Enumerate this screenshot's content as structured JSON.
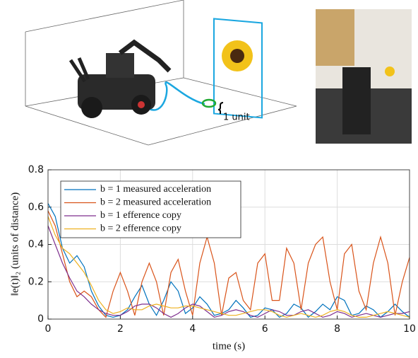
{
  "illustration": {
    "label": "1 unit"
  },
  "chart_data": {
    "type": "line",
    "xlabel": "time (s)",
    "ylabel": "‖e(t)‖₂ (units of distance)",
    "x": [
      0,
      0.2,
      0.4,
      0.6,
      0.8,
      1,
      1.2,
      1.4,
      1.6,
      1.8,
      2,
      2.2,
      2.4,
      2.6,
      2.8,
      3,
      3.2,
      3.4,
      3.6,
      3.8,
      4,
      4.2,
      4.4,
      4.6,
      4.8,
      5,
      5.2,
      5.4,
      5.6,
      5.8,
      6,
      6.2,
      6.4,
      6.6,
      6.8,
      7,
      7.2,
      7.4,
      7.6,
      7.8,
      8,
      8.2,
      8.4,
      8.6,
      8.8,
      9,
      9.2,
      9.4,
      9.6,
      9.8,
      10
    ],
    "series": [
      {
        "name": "b = 1 measured acceleration",
        "color": "#0072bd",
        "values": [
          0.62,
          0.55,
          0.38,
          0.3,
          0.34,
          0.28,
          0.15,
          0.07,
          0.02,
          0.01,
          0.02,
          0.05,
          0.12,
          0.18,
          0.08,
          0.02,
          0.1,
          0.2,
          0.15,
          0.03,
          0.06,
          0.12,
          0.08,
          0.02,
          0.03,
          0.05,
          0.1,
          0.06,
          0.01,
          0.02,
          0.06,
          0.05,
          0.01,
          0.03,
          0.08,
          0.06,
          0.01,
          0.04,
          0.08,
          0.05,
          0.12,
          0.1,
          0.02,
          0.03,
          0.07,
          0.05,
          0.01,
          0.04,
          0.08,
          0.04,
          0.01
        ]
      },
      {
        "name": "b = 2 measured acceleration",
        "color": "#d95319",
        "values": [
          0.58,
          0.5,
          0.35,
          0.2,
          0.12,
          0.15,
          0.12,
          0.05,
          0.01,
          0.15,
          0.25,
          0.15,
          0.02,
          0.2,
          0.3,
          0.2,
          0.02,
          0.25,
          0.32,
          0.15,
          0.02,
          0.3,
          0.44,
          0.3,
          0.02,
          0.22,
          0.25,
          0.1,
          0.05,
          0.3,
          0.35,
          0.1,
          0.1,
          0.38,
          0.3,
          0.05,
          0.3,
          0.4,
          0.44,
          0.2,
          0.05,
          0.35,
          0.4,
          0.15,
          0.05,
          0.3,
          0.44,
          0.3,
          0.02,
          0.2,
          0.33
        ]
      },
      {
        "name": "b = 1 efference copy",
        "color": "#7e2f8e",
        "values": [
          0.5,
          0.4,
          0.3,
          0.22,
          0.15,
          0.12,
          0.08,
          0.05,
          0.03,
          0.02,
          0.02,
          0.04,
          0.07,
          0.08,
          0.08,
          0.06,
          0.03,
          0.01,
          0.03,
          0.06,
          0.08,
          0.07,
          0.04,
          0.01,
          0.02,
          0.04,
          0.05,
          0.04,
          0.02,
          0.01,
          0.03,
          0.05,
          0.04,
          0.02,
          0.02,
          0.04,
          0.05,
          0.03,
          0.01,
          0.02,
          0.04,
          0.03,
          0.01,
          0.02,
          0.03,
          0.02,
          0.01,
          0.02,
          0.03,
          0.03,
          0.04
        ]
      },
      {
        "name": "b = 2 efference copy",
        "color": "#edb120",
        "values": [
          0.55,
          0.45,
          0.38,
          0.35,
          0.3,
          0.25,
          0.18,
          0.1,
          0.05,
          0.03,
          0.04,
          0.06,
          0.05,
          0.05,
          0.07,
          0.08,
          0.07,
          0.06,
          0.06,
          0.07,
          0.07,
          0.06,
          0.05,
          0.04,
          0.03,
          0.02,
          0.02,
          0.03,
          0.04,
          0.05,
          0.05,
          0.04,
          0.02,
          0.01,
          0.02,
          0.03,
          0.02,
          0.01,
          0.02,
          0.04,
          0.05,
          0.04,
          0.02,
          0.01,
          0.01,
          0.02,
          0.03,
          0.04,
          0.03,
          0.02,
          0.01
        ]
      }
    ],
    "xlim": [
      0,
      10
    ],
    "xticks": [
      0,
      2,
      4,
      6,
      8,
      10
    ],
    "ylim": [
      0,
      0.8
    ],
    "yticks": [
      0,
      0.2,
      0.4,
      0.6,
      0.8
    ],
    "grid": true,
    "legend": "upper left"
  }
}
